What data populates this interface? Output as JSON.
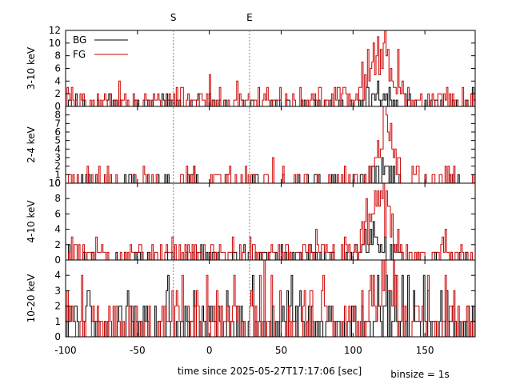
{
  "chart_data": {
    "type": "line",
    "subtype": "step-histogram",
    "xlabel": "time since 2025-05-27T17:17:06 [sec]",
    "xlim": [
      -100,
      185
    ],
    "xticks": [
      -100,
      -50,
      0,
      50,
      100,
      150
    ],
    "binsize_label": "binsize = 1s",
    "markers": [
      {
        "label": "S",
        "x": -25
      },
      {
        "label": "E",
        "x": 28
      }
    ],
    "legend": {
      "position": "top-left",
      "entries": [
        {
          "label": "BG",
          "color": "#000000"
        },
        {
          "label": "FG",
          "color": "#cc0000"
        }
      ]
    },
    "panels": [
      {
        "ylabel": "3-10 keV",
        "ylim": [
          0,
          12
        ],
        "yticks": [
          0,
          2,
          4,
          6,
          8,
          10,
          12
        ],
        "bg_level": 0.3,
        "fg_level": 0.9,
        "burst": {
          "start": 104,
          "end": 136,
          "peak_time": 119,
          "bg_peak": 3,
          "fg_peak": 12
        },
        "spikes": [
          {
            "x": 19,
            "fg": 4
          }
        ]
      },
      {
        "ylabel": "2-4 keV",
        "ylim": [
          0,
          9
        ],
        "yticks": [
          0,
          1,
          2,
          3,
          4,
          5,
          6,
          7,
          8
        ],
        "bg_level": 0.15,
        "fg_level": 0.35,
        "burst": {
          "start": 108,
          "end": 135,
          "peak_time": 122,
          "bg_peak": 2,
          "fg_peak": 9
        },
        "spikes": [
          {
            "x": 14,
            "fg": 2
          }
        ]
      },
      {
        "ylabel": "4-10 keV",
        "ylim": [
          0,
          10
        ],
        "yticks": [
          0,
          2,
          4,
          6,
          8,
          10
        ],
        "bg_level": 0.25,
        "fg_level": 0.8,
        "burst": {
          "start": 100,
          "end": 134,
          "peak_time": 117,
          "bg_peak": 3,
          "fg_peak": 9
        },
        "spikes": []
      },
      {
        "ylabel": "10-20 keV",
        "ylim": [
          0,
          5
        ],
        "yticks": [
          0,
          1,
          2,
          3,
          4
        ],
        "bg_level": 0.9,
        "fg_level": 1.1,
        "burst": {
          "start": 110,
          "end": 132,
          "peak_time": 122,
          "bg_peak": 3,
          "fg_peak": 5
        },
        "spikes": [
          {
            "x": 38,
            "fg": 5
          }
        ]
      }
    ]
  }
}
